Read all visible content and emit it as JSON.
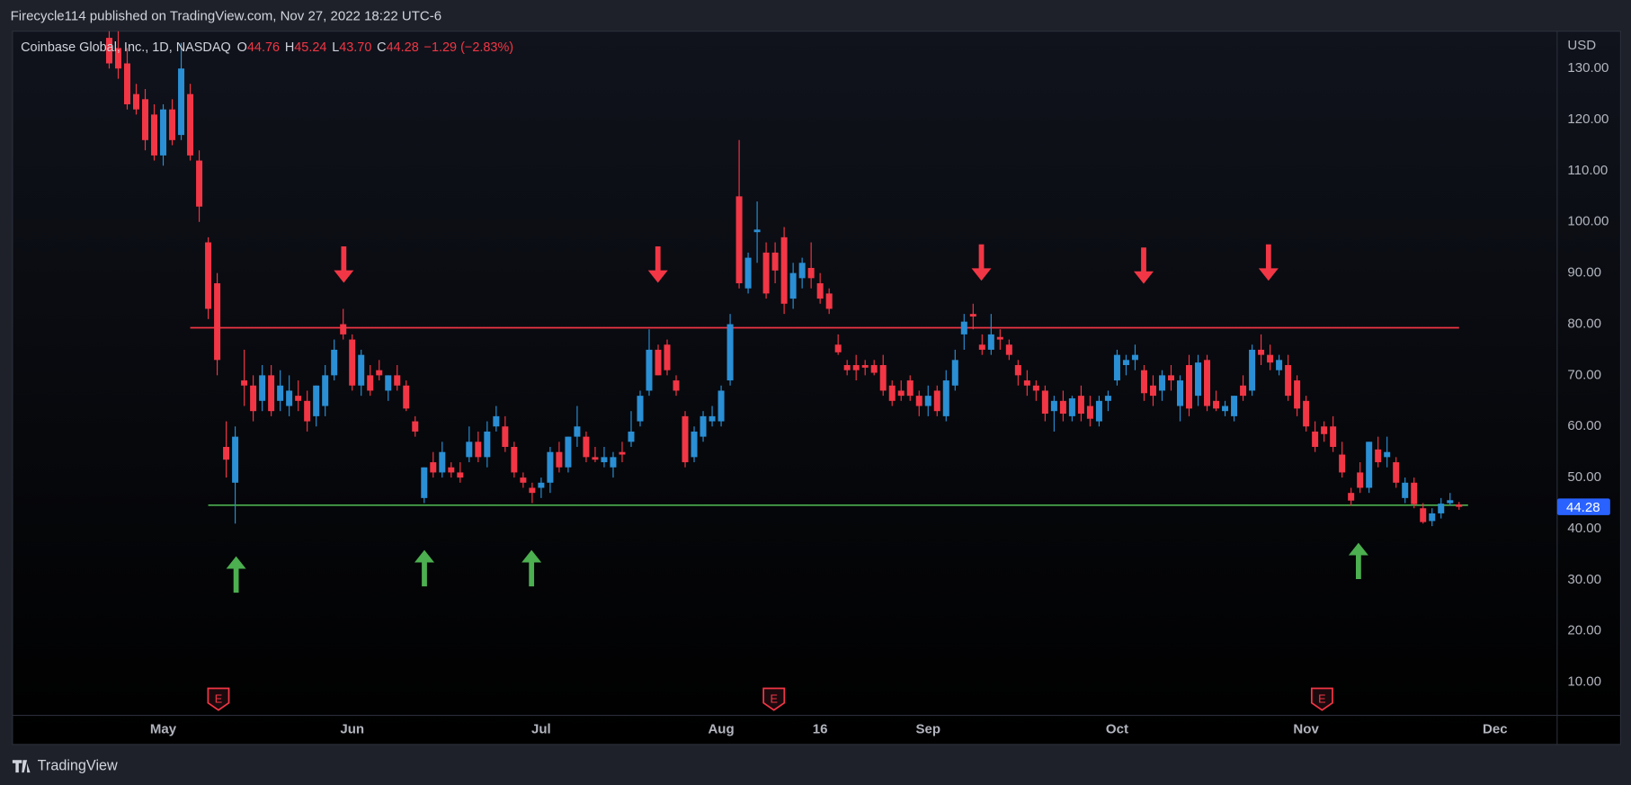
{
  "header": {
    "title": "Firecycle114 published on TradingView.com, Nov 27, 2022 18:22 UTC-6"
  },
  "footer": {
    "brand": "TradingView"
  },
  "chart_data": {
    "type": "candlestick",
    "legend": {
      "symbol": "Coinbase Global, Inc., 1D, NASDAQ",
      "fields": [
        {
          "key": "O",
          "value": "44.76"
        },
        {
          "key": "H",
          "value": "45.24"
        },
        {
          "key": "L",
          "value": "43.70"
        },
        {
          "key": "C",
          "value": "44.28"
        }
      ],
      "change": "−1.29 (−2.83%)"
    },
    "currency": "USD",
    "earnings_marker": "E",
    "up_color": "#2a8fd4",
    "down_color": "#f23645",
    "open": [
      136,
      134,
      131,
      125,
      124,
      121,
      113,
      122,
      117,
      125,
      112,
      96,
      88,
      56,
      49,
      69,
      68,
      65,
      70,
      65,
      64,
      66,
      65,
      62,
      64,
      70,
      80,
      77,
      68,
      70,
      71,
      67,
      70,
      68,
      61,
      46,
      53,
      51,
      52,
      51,
      54,
      57,
      54,
      60,
      60,
      56,
      50,
      48,
      48,
      49,
      55,
      52,
      58,
      58,
      54,
      53,
      52,
      55,
      57,
      61,
      67,
      75,
      76,
      69,
      62,
      54,
      58,
      61,
      61,
      69,
      105,
      87,
      98,
      94,
      94,
      97,
      85,
      89,
      91,
      88,
      86,
      76,
      72,
      72,
      72,
      72,
      72,
      68,
      67,
      69,
      66,
      64,
      67,
      62,
      68,
      78,
      82,
      76,
      75,
      77.5,
      76,
      72,
      69,
      68,
      67,
      63,
      65,
      62,
      66,
      64,
      61,
      65,
      69,
      72,
      73,
      71,
      68,
      67,
      70,
      64,
      72,
      66,
      73,
      65,
      63,
      62,
      68,
      67,
      75,
      74,
      71,
      72,
      69,
      65,
      59,
      60,
      60,
      54.5,
      47,
      51,
      48,
      55.5,
      54,
      53,
      46,
      49,
      44,
      41.5,
      43,
      45,
      44.76
    ],
    "high": [
      139,
      138,
      134,
      127,
      126,
      123,
      123,
      124,
      135,
      127,
      114,
      97,
      90,
      61,
      60,
      75,
      70,
      72,
      72,
      71,
      70,
      69,
      67,
      68,
      72,
      77,
      83,
      78,
      75,
      72,
      73,
      70,
      72,
      69,
      62,
      52,
      55,
      57,
      53,
      53,
      60,
      59,
      61,
      64,
      62,
      57,
      51,
      49,
      50,
      56,
      57,
      58,
      64,
      59,
      56,
      56,
      55,
      57,
      63,
      67,
      79,
      76,
      77,
      70,
      63,
      60,
      63,
      64,
      68,
      82,
      116,
      94,
      104,
      96,
      96,
      99,
      92,
      93,
      96,
      90,
      87,
      78,
      73,
      74,
      73,
      73,
      74,
      69,
      69,
      70,
      67,
      68,
      68,
      71,
      75,
      82,
      84,
      78,
      82,
      79,
      77,
      73,
      71,
      69,
      68,
      66,
      67,
      66,
      68,
      66,
      66,
      67,
      75,
      74,
      76,
      72,
      70,
      71,
      72,
      70,
      74,
      74,
      74,
      67,
      65,
      66,
      70,
      76,
      78,
      76,
      74,
      74,
      70,
      66,
      61,
      61,
      62,
      57,
      48,
      53,
      57,
      58,
      58,
      54,
      50,
      50,
      45,
      44,
      46,
      47,
      45.24
    ],
    "low": [
      130,
      128,
      122,
      121,
      114,
      112,
      111,
      115,
      116,
      112,
      100,
      81,
      70,
      50,
      41,
      64,
      61,
      63,
      62,
      63,
      62,
      63,
      59,
      60,
      62,
      69,
      77,
      67,
      66,
      66,
      69,
      65,
      67,
      63,
      58,
      45,
      50,
      50,
      50,
      49,
      53,
      53,
      52,
      59,
      55,
      50,
      48,
      45,
      46,
      47,
      51,
      51,
      56,
      53,
      53,
      52,
      50,
      53,
      56,
      60,
      66,
      70,
      70,
      66,
      52,
      53,
      57,
      60,
      60,
      68,
      87,
      86,
      92,
      85,
      88,
      82,
      83,
      87,
      87,
      84,
      82,
      74,
      70,
      69,
      70,
      70,
      66,
      64,
      65,
      65,
      62,
      62,
      62,
      61,
      67,
      75,
      79,
      74,
      74,
      75,
      73,
      68,
      66,
      65,
      61,
      59,
      61,
      61,
      61,
      60,
      60,
      63,
      68,
      70,
      71,
      65,
      64,
      65,
      67,
      61,
      62,
      64,
      63,
      63,
      62,
      61,
      65,
      66,
      72,
      71,
      70,
      65,
      62,
      59,
      55,
      57,
      55,
      50,
      44.5,
      47,
      47,
      52,
      52,
      48,
      45,
      44,
      41,
      40.5,
      42,
      44.5,
      43.7
    ],
    "close": [
      131,
      130,
      123,
      122,
      116,
      113,
      122,
      116,
      130,
      113,
      103,
      83,
      73,
      53.5,
      58,
      68,
      63,
      70,
      63,
      68,
      67,
      65,
      61,
      68,
      70,
      75,
      78,
      68,
      74,
      67,
      70,
      70,
      68,
      63.5,
      59,
      52,
      51,
      55,
      51,
      50,
      57,
      54,
      59,
      62,
      56,
      51,
      49,
      47,
      49,
      55,
      52,
      58,
      60,
      54,
      53.5,
      54,
      54,
      54.5,
      59,
      66,
      75,
      70,
      71,
      67,
      53,
      59,
      62,
      62,
      67,
      80,
      88,
      93,
      98.5,
      86,
      90.5,
      84,
      90,
      92,
      89,
      85,
      83,
      74.5,
      71,
      71,
      71.5,
      70.5,
      67,
      65,
      66,
      66,
      64,
      66,
      63,
      69,
      73,
      80.5,
      81.5,
      75,
      78,
      77,
      74,
      70,
      68,
      67,
      62.5,
      65,
      62.5,
      65.5,
      62.5,
      61.5,
      65,
      66,
      74,
      73,
      74,
      66.5,
      66,
      70,
      69,
      69,
      63.5,
      72.5,
      64,
      63.5,
      64,
      66,
      66,
      75,
      74,
      72.5,
      73,
      66,
      63.5,
      60,
      56,
      58.5,
      56,
      51,
      45.5,
      48,
      57,
      53,
      55,
      49,
      49,
      44.8,
      41.3,
      43,
      44.9,
      45.57,
      44.28
    ],
    "xlim": [
      -10.75,
      160.9
    ],
    "xticks": [
      {
        "value": 6,
        "label": "May"
      },
      {
        "value": 27,
        "label": "Jun"
      },
      {
        "value": 48,
        "label": "Jul"
      },
      {
        "value": 68,
        "label": "Aug"
      },
      {
        "value": 79,
        "label": "16"
      },
      {
        "value": 91,
        "label": "Sep"
      },
      {
        "value": 112,
        "label": "Oct"
      },
      {
        "value": 133,
        "label": "Nov"
      },
      {
        "value": 154,
        "label": "Dec"
      }
    ],
    "ylim": [
      3.5,
      137.3
    ],
    "yticks": [
      {
        "value": 10,
        "label": "10.00"
      },
      {
        "value": 20,
        "label": "20.00"
      },
      {
        "value": 30,
        "label": "30.00"
      },
      {
        "value": 40,
        "label": "40.00"
      },
      {
        "value": 50,
        "label": "50.00"
      },
      {
        "value": 60,
        "label": "60.00"
      },
      {
        "value": 70,
        "label": "70.00"
      },
      {
        "value": 80,
        "label": "80.00"
      },
      {
        "value": 90,
        "label": "90.00"
      },
      {
        "value": 100,
        "label": "100.00"
      },
      {
        "value": 110,
        "label": "110.00"
      },
      {
        "value": 120,
        "label": "120.00"
      },
      {
        "value": 130,
        "label": "130.00"
      }
    ],
    "grid": false,
    "hlines": [
      {
        "value": 79.3,
        "color": "#f23645",
        "start": 9,
        "end": 150
      },
      {
        "value": 44.6,
        "color": "#4caf50",
        "start": 11,
        "end": 151
      }
    ],
    "last_price": {
      "value": 44.28,
      "label": "44.28",
      "color": "#2962ff"
    }
  }
}
